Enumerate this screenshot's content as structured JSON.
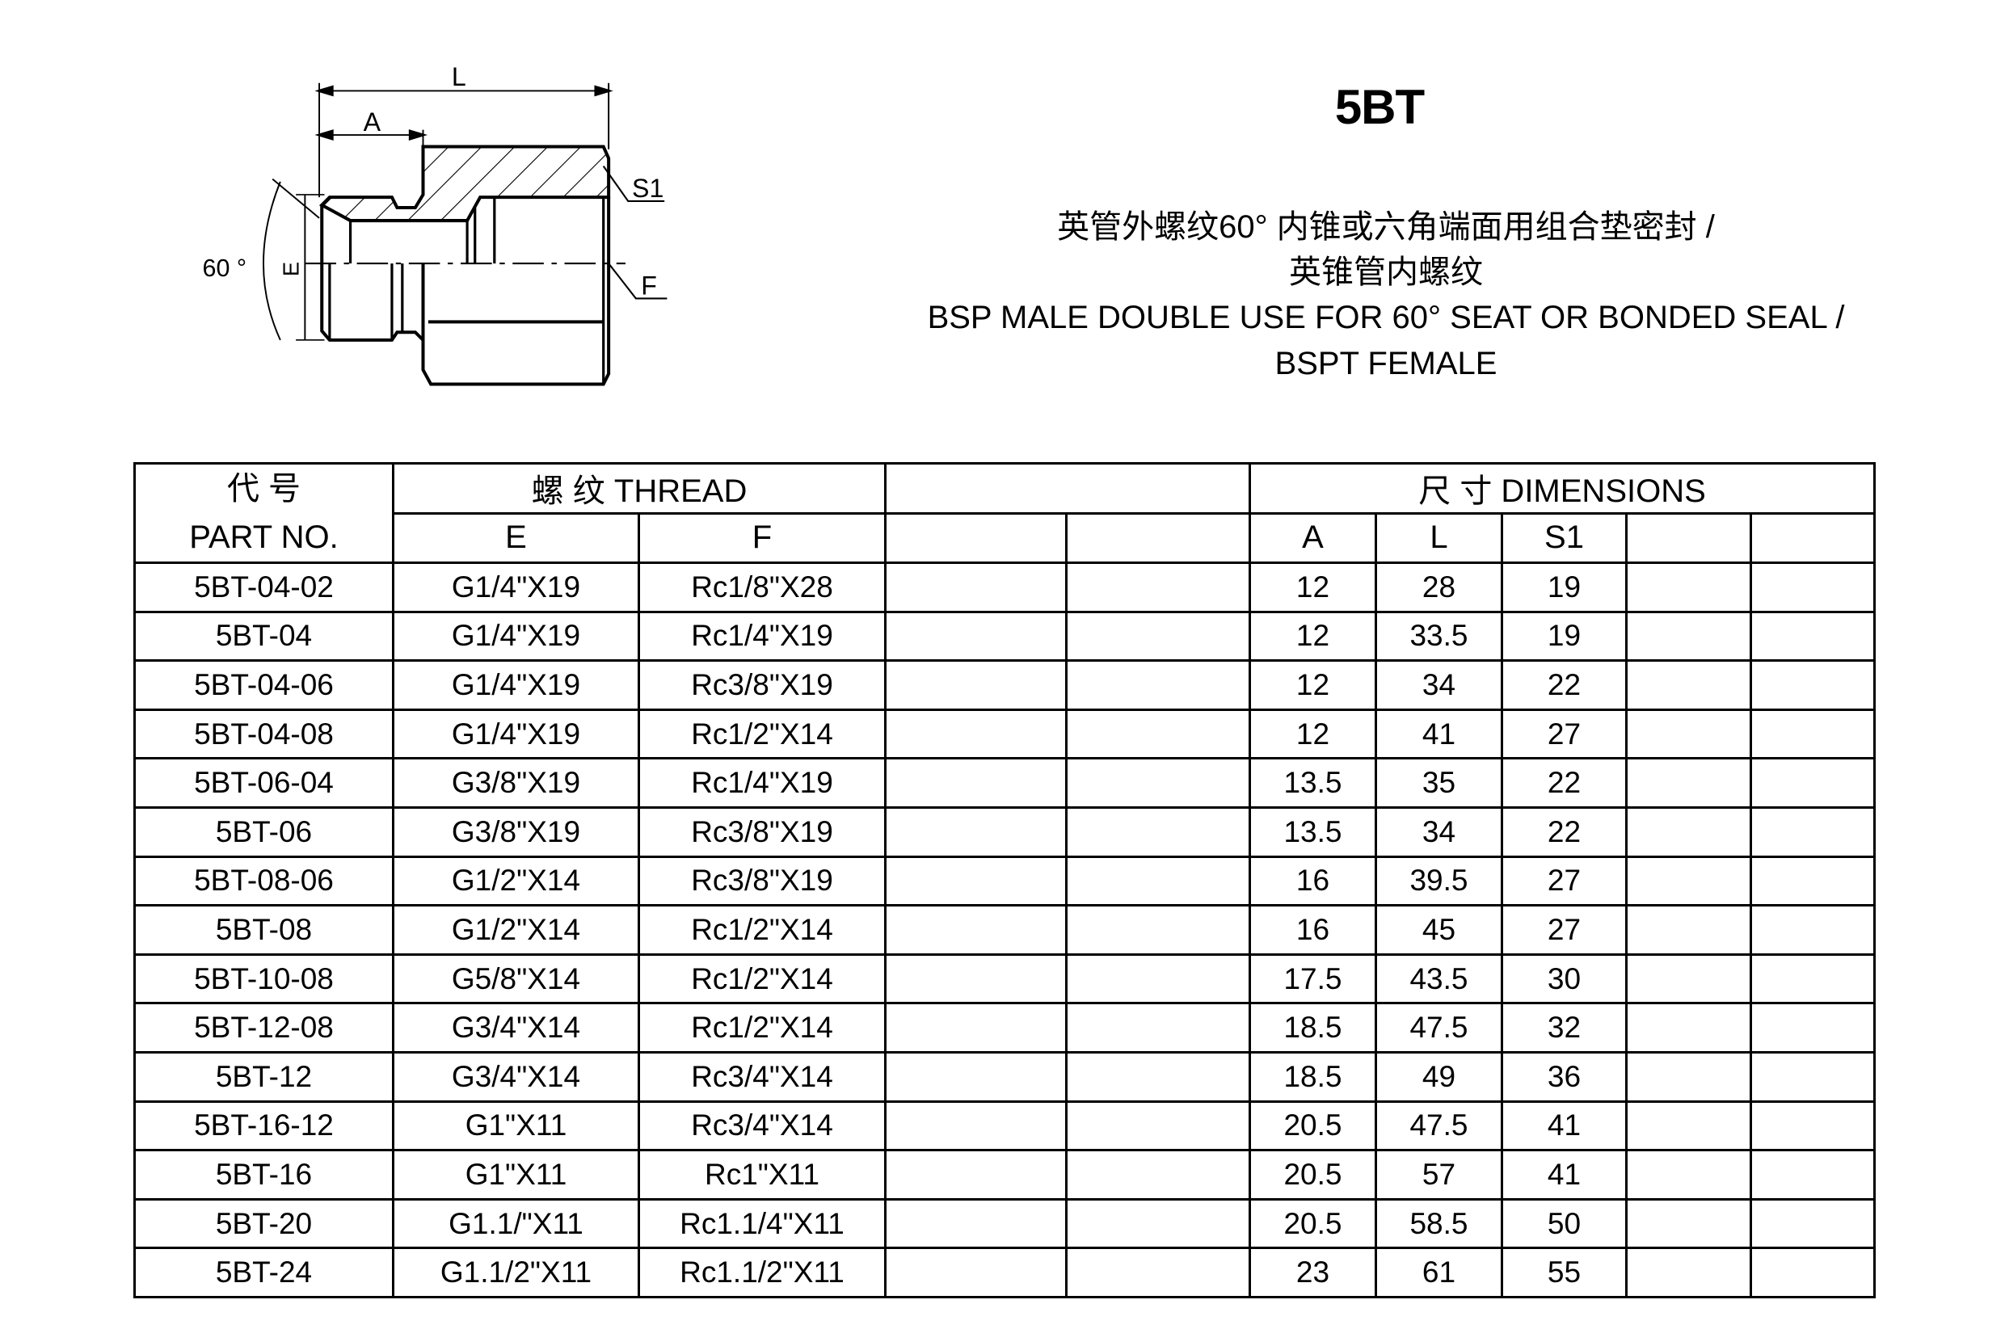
{
  "drawing": {
    "label_L": "L",
    "label_A": "A",
    "label_S1": "S1",
    "label_F": "F",
    "label_E": "E",
    "label_angle": "60 °"
  },
  "header": {
    "title": "5BT",
    "subtitle_cn_1": "英管外螺纹60°  内锥或六角端面用组合垫密封 /",
    "subtitle_cn_2": "英锥管内螺纹",
    "subtitle_en_1": "BSP MALE DOUBLE USE FOR 60° SEAT OR BONDED SEAL /",
    "subtitle_en_2": "BSPT FEMALE"
  },
  "table": {
    "part_no_cn": "代 号",
    "part_no_en": "PART NO.",
    "thread_group": "螺 纹  THREAD",
    "dimensions_group": "尺 寸   DIMENSIONS",
    "col_E": "E",
    "col_F": "F",
    "col_A": "A",
    "col_L": "L",
    "col_S1": "S1",
    "rows": [
      {
        "part": "5BT-04-02",
        "E": "G1/4\"X19",
        "F": "Rc1/8\"X28",
        "A": "12",
        "L": "28",
        "S1": "19"
      },
      {
        "part": "5BT-04",
        "E": "G1/4\"X19",
        "F": "Rc1/4\"X19",
        "A": "12",
        "L": "33.5",
        "S1": "19"
      },
      {
        "part": "5BT-04-06",
        "E": "G1/4\"X19",
        "F": "Rc3/8\"X19",
        "A": "12",
        "L": "34",
        "S1": "22"
      },
      {
        "part": "5BT-04-08",
        "E": "G1/4\"X19",
        "F": "Rc1/2\"X14",
        "A": "12",
        "L": "41",
        "S1": "27"
      },
      {
        "part": "5BT-06-04",
        "E": "G3/8\"X19",
        "F": "Rc1/4\"X19",
        "A": "13.5",
        "L": "35",
        "S1": "22"
      },
      {
        "part": "5BT-06",
        "E": "G3/8\"X19",
        "F": "Rc3/8\"X19",
        "A": "13.5",
        "L": "34",
        "S1": "22"
      },
      {
        "part": "5BT-08-06",
        "E": "G1/2\"X14",
        "F": "Rc3/8\"X19",
        "A": "16",
        "L": "39.5",
        "S1": "27"
      },
      {
        "part": "5BT-08",
        "E": "G1/2\"X14",
        "F": "Rc1/2\"X14",
        "A": "16",
        "L": "45",
        "S1": "27"
      },
      {
        "part": "5BT-10-08",
        "E": "G5/8\"X14",
        "F": "Rc1/2\"X14",
        "A": "17.5",
        "L": "43.5",
        "S1": "30"
      },
      {
        "part": "5BT-12-08",
        "E": "G3/4\"X14",
        "F": "Rc1/2\"X14",
        "A": "18.5",
        "L": "47.5",
        "S1": "32"
      },
      {
        "part": "5BT-12",
        "E": "G3/4\"X14",
        "F": "Rc3/4\"X14",
        "A": "18.5",
        "L": "49",
        "S1": "36"
      },
      {
        "part": "5BT-16-12",
        "E": "G1\"X11",
        "F": "Rc3/4\"X14",
        "A": "20.5",
        "L": "47.5",
        "S1": "41"
      },
      {
        "part": "5BT-16",
        "E": "G1\"X11",
        "F": "Rc1\"X11",
        "A": "20.5",
        "L": "57",
        "S1": "41"
      },
      {
        "part": "5BT-20",
        "E": "G1.1/\"X11",
        "F": "Rc1.1/4\"X11",
        "A": "20.5",
        "L": "58.5",
        "S1": "50"
      },
      {
        "part": "5BT-24",
        "E": "G1.1/2\"X11",
        "F": "Rc1.1/2\"X11",
        "A": "23",
        "L": "61",
        "S1": "55"
      }
    ]
  }
}
